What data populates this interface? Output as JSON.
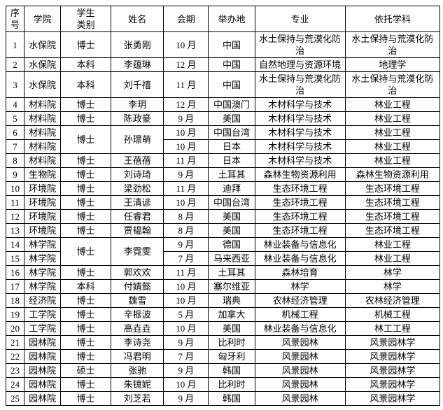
{
  "table": {
    "headers": [
      "序\n号",
      "学院",
      "学生\n类别",
      "姓名",
      "会期",
      "举办地",
      "专业",
      "依托学科"
    ],
    "rows": [
      [
        "1",
        "水保院",
        "博士",
        "张勇刚",
        "10 月",
        "中国",
        "水土保持与荒漠化防\n治",
        "水土保持与荒漠化防\n治"
      ],
      [
        "2",
        "水保院",
        "本科",
        "李蕴琳",
        "12 月",
        "中国",
        "自然地理与资源环境",
        "地理学"
      ],
      [
        "3",
        "水保院",
        "本科",
        "刘千禧",
        "11 月",
        "中国",
        "水土保持与荒漠化防\n治",
        "水土保持与荒漠化防\n治"
      ],
      [
        "4",
        "材料院",
        "博士",
        "李玥",
        "12 月",
        "中国澳门",
        "木材科学与技术",
        "林业工程"
      ],
      [
        "5",
        "材料院",
        "博士",
        "陈政豪",
        "9 月",
        "美国",
        "木材科学与技术",
        "林业工程"
      ],
      [
        "6",
        "材料院",
        "博士",
        "孙璟萌",
        "10 月",
        "中国台湾",
        "木材科学与技术",
        "林业工程"
      ],
      [
        "7",
        "材料院",
        null,
        null,
        "10 月",
        "日本",
        "木材科学与技术",
        "林业工程"
      ],
      [
        "8",
        "材料院",
        "博士",
        "王蓓蓓",
        "11 月",
        "日本",
        "木材科学与技术",
        "林业工程"
      ],
      [
        "9",
        "生物院",
        "博士",
        "刘诗琦",
        "9 月",
        "土耳其",
        "森林生物资源利用",
        "森林生物资源利用"
      ],
      [
        "10",
        "环境院",
        "博士",
        "梁劲松",
        "11 月",
        "迪拜",
        "生态环境工程",
        "生态环境工程"
      ],
      [
        "11",
        "环境院",
        "博士",
        "王清谚",
        "10 月",
        "中国台湾",
        "生态环境工程",
        "生态环境工程"
      ],
      [
        "12",
        "环境院",
        "博士",
        "任睿君",
        "8 月",
        "美国",
        "生态环境工程",
        "生态环境工程"
      ],
      [
        "13",
        "环境院",
        "博士",
        "贾韫翰",
        "8 月",
        "美国",
        "生态环境工程",
        "生态环境工程"
      ],
      [
        "14",
        "林学院",
        "博士",
        "李霓雯",
        "9 月",
        "德国",
        "林业装备与信息化",
        "林业工程"
      ],
      [
        "15",
        "林学院",
        null,
        null,
        "7 月",
        "马来西亚",
        "林业装备与信息化",
        "林业工程"
      ],
      [
        "16",
        "林学院",
        "博士",
        "郭欢欢",
        "11 月",
        "土耳其",
        "森林培育",
        "林学"
      ],
      [
        "17",
        "林学院",
        "本科",
        "付婧懿",
        "10 月",
        "塞尔维亚",
        "林学",
        "林学"
      ],
      [
        "18",
        "经济院",
        "博士",
        "魏雪",
        "10 月",
        "瑞典",
        "农林经济管理",
        "农林经济管理"
      ],
      [
        "19",
        "工学院",
        "博士",
        "辛振波",
        "5 月",
        "加拿大",
        "机械工程",
        "机械工程"
      ],
      [
        "20",
        "工学院",
        "博士",
        "高垚垚",
        "10 月",
        "美国",
        "林业装备与信息化",
        "林工工程"
      ],
      [
        "21",
        "园林院",
        "博士",
        "李诗尧",
        "9 月",
        "比利时",
        "风景园林",
        "风景园林学"
      ],
      [
        "22",
        "园林院",
        "博士",
        "冯君明",
        "7 月",
        "匈牙利",
        "风景园林",
        "风景园林学"
      ],
      [
        "23",
        "园林院",
        "硕士",
        "张驰",
        "9 月",
        "韩国",
        "风景园林",
        "风景园林学"
      ],
      [
        "24",
        "园林院",
        "博士",
        "朱镱妮",
        "10 月",
        "比利时",
        "风景园林",
        "风景园林学"
      ],
      [
        "25",
        "园林院",
        "博士",
        "刘芝若",
        "9 月",
        "韩国",
        "风景园林",
        "风景园林学"
      ]
    ],
    "merges": [
      {
        "row": 5,
        "cols": [
          2,
          3
        ],
        "span": 2
      },
      {
        "row": 13,
        "cols": [
          2,
          3
        ],
        "span": 2
      }
    ]
  }
}
